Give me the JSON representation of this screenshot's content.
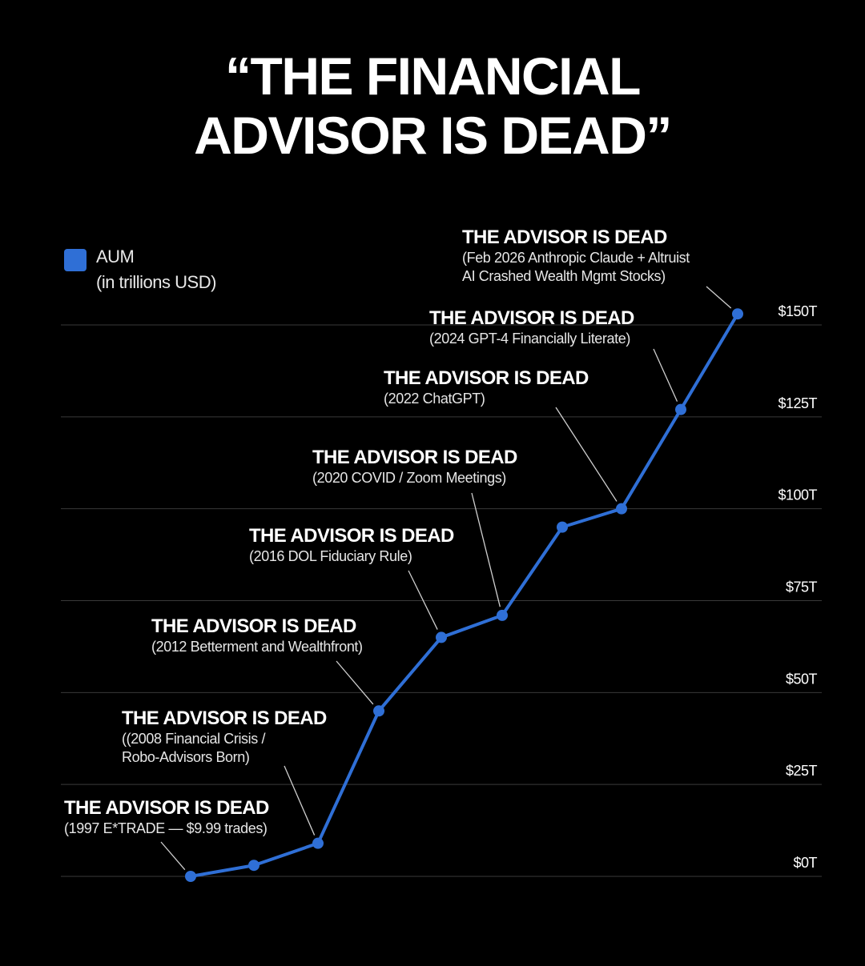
{
  "header": {
    "title_line1": "“THE FINANCIAL",
    "title_line2": "ADVISOR IS DEAD”"
  },
  "legend": {
    "name": "AUM",
    "unit": "(in trillions USD)",
    "color": "#2f6fd6"
  },
  "colors": {
    "background": "#000000",
    "line": "#2f6fd6",
    "grid": "#3a3a3a",
    "leader": "#cfcfcf"
  },
  "chart_data": {
    "type": "line",
    "title": "“THE FINANCIAL ADVISOR IS DEAD”",
    "ylim": [
      0,
      150
    ],
    "y_ticks": [
      0,
      25,
      50,
      75,
      100,
      125,
      150
    ],
    "y_tick_labels": [
      "$0T",
      "$25T",
      "$50T",
      "$75T",
      "$100T",
      "$125T",
      "$150T"
    ],
    "grid": true,
    "legend_placement": "top-left",
    "series": [
      {
        "name": "AUM",
        "values": [
          0,
          3,
          9,
          45,
          65,
          71,
          95,
          100,
          127,
          153
        ]
      }
    ],
    "annotations": [
      {
        "point": 0,
        "heading": "THE ADVISOR IS DEAD",
        "detail": [
          "(1997 E*TRADE — $9.99 trades)"
        ]
      },
      {
        "point": 2,
        "heading": "THE ADVISOR IS DEAD",
        "detail": [
          "((2008 Financial Crisis /",
          "Robo-Advisors Born)"
        ]
      },
      {
        "point": 3,
        "heading": "THE ADVISOR IS DEAD",
        "detail": [
          "(2012 Betterment and Wealthfront)"
        ]
      },
      {
        "point": 4,
        "heading": "THE ADVISOR IS DEAD",
        "detail": [
          "(2016 DOL Fiduciary Rule)"
        ]
      },
      {
        "point": 5,
        "heading": "THE ADVISOR IS DEAD",
        "detail": [
          "(2020 COVID / Zoom Meetings)"
        ]
      },
      {
        "point": 7,
        "heading": "THE ADVISOR IS DEAD",
        "detail": [
          "(2022 ChatGPT)"
        ]
      },
      {
        "point": 8,
        "heading": "THE ADVISOR IS DEAD",
        "detail": [
          "(2024 GPT-4 Financially Literate)"
        ]
      },
      {
        "point": 9,
        "heading": "THE ADVISOR IS DEAD",
        "detail": [
          "(Feb 2026 Anthropic Claude + Altruist",
          "AI Crashed Wealth Mgmt Stocks)"
        ]
      }
    ]
  }
}
